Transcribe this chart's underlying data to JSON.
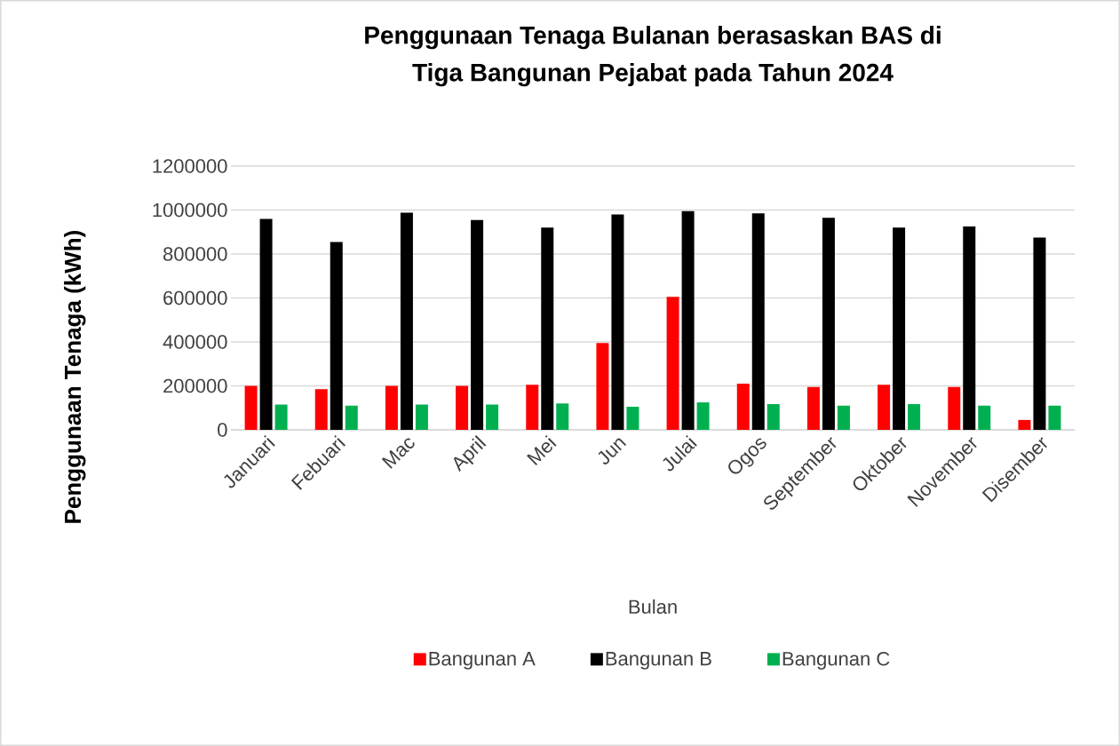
{
  "chart_data": {
    "type": "bar",
    "title": "Penggunaan Tenaga Bulanan berasaskan BAS di\nTiga Bangunan Pejabat pada Tahun 2024",
    "xlabel": "Bulan",
    "ylabel": "Penggunaan Tenaga  (kWh)",
    "categories": [
      "Januari",
      "Febuari",
      "Mac",
      "April",
      "Mei",
      "Jun",
      "Julai",
      "Ogos",
      "September",
      "Oktober",
      "November",
      "Disember"
    ],
    "series": [
      {
        "name": "Bangunan A",
        "color": "#ff0000",
        "values": [
          200000,
          185000,
          200000,
          200000,
          205000,
          395000,
          605000,
          210000,
          195000,
          205000,
          195000,
          45000
        ]
      },
      {
        "name": "Bangunan B",
        "color": "#000000",
        "values": [
          960000,
          855000,
          988000,
          955000,
          920000,
          980000,
          995000,
          985000,
          965000,
          920000,
          925000,
          875000
        ]
      },
      {
        "name": "Bangunan  C",
        "color": "#00b050",
        "values": [
          115000,
          110000,
          115000,
          115000,
          120000,
          105000,
          125000,
          117000,
          110000,
          117000,
          110000,
          110000
        ]
      }
    ],
    "ylim": [
      0,
      1200000
    ],
    "yticks": [
      0,
      200000,
      400000,
      600000,
      800000,
      1000000,
      1200000
    ],
    "grid": "y",
    "legend": "bottom"
  }
}
